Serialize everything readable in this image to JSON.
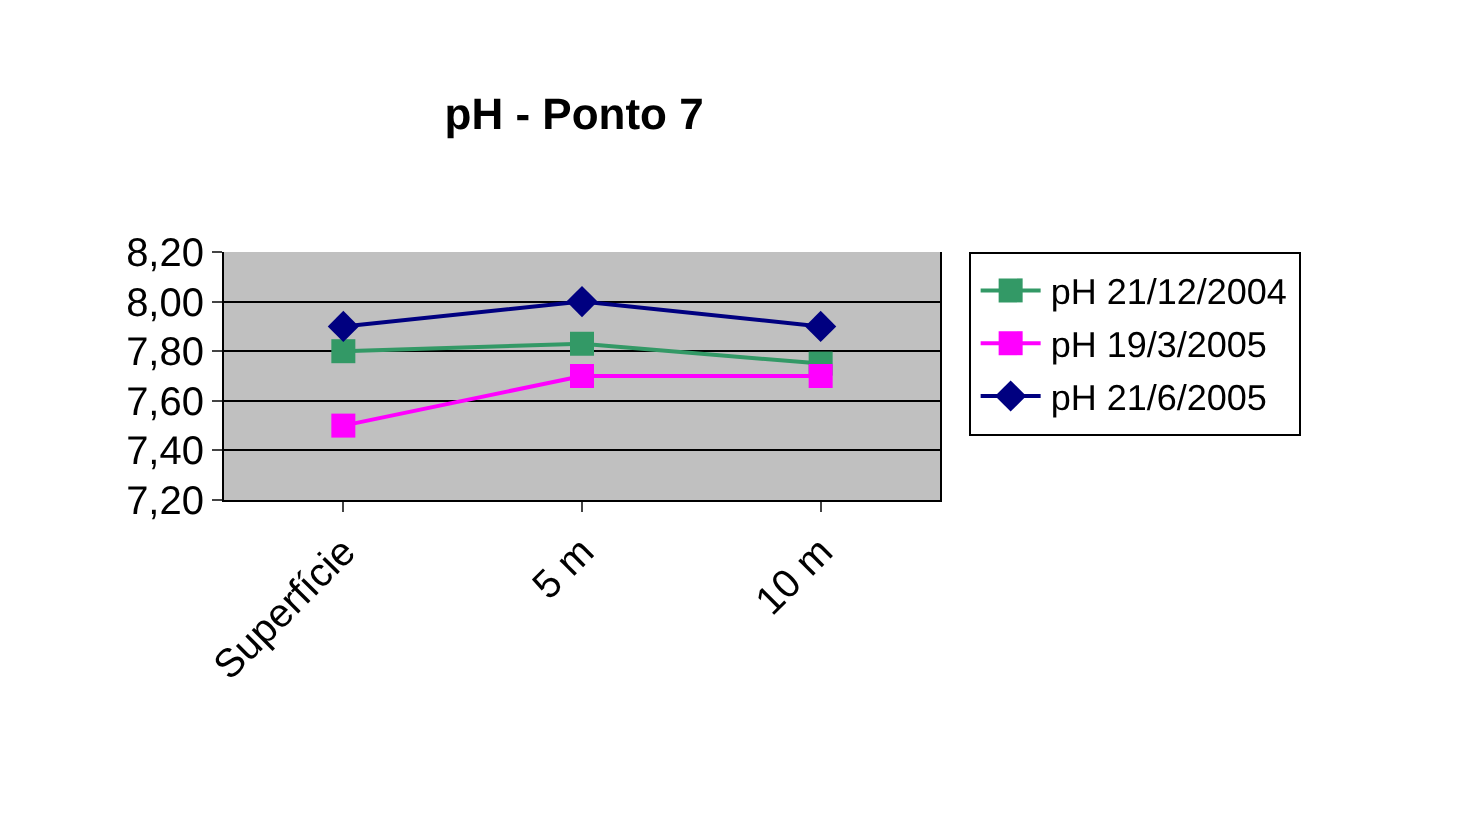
{
  "chart_data": {
    "type": "line",
    "title": "pH - Ponto 7",
    "categories": [
      "Superfície",
      "5 m",
      "10 m"
    ],
    "series": [
      {
        "name": "pH 21/12/2004",
        "color": "#339966",
        "marker": "square",
        "values": [
          7.8,
          7.83,
          7.75
        ]
      },
      {
        "name": "pH 19/3/2005",
        "color": "#ff00ff",
        "marker": "square",
        "values": [
          7.5,
          7.7,
          7.7
        ]
      },
      {
        "name": "pH 21/6/2005",
        "color": "#000080",
        "marker": "diamond",
        "values": [
          7.9,
          8.0,
          7.9
        ]
      }
    ],
    "ylim": [
      7.2,
      8.2
    ],
    "yticks": [
      {
        "value": 7.2,
        "label": "7,20"
      },
      {
        "value": 7.4,
        "label": "7,40"
      },
      {
        "value": 7.6,
        "label": "7,60"
      },
      {
        "value": 7.8,
        "label": "7,80"
      },
      {
        "value": 8.0,
        "label": "8,00"
      },
      {
        "value": 8.2,
        "label": "8,20"
      }
    ],
    "grid": "y",
    "legend": "right",
    "line_style": "solid"
  }
}
